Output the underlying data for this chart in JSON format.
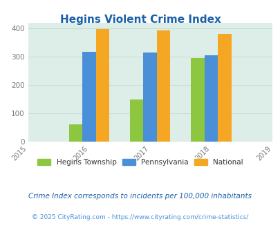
{
  "title": "Hegins Violent Crime Index",
  "years": [
    2016,
    2017,
    2018
  ],
  "x_ticks": [
    2015,
    2016,
    2017,
    2018,
    2019
  ],
  "hegins": [
    60,
    148,
    296
  ],
  "pennsylvania": [
    317,
    315,
    306
  ],
  "national": [
    398,
    394,
    382
  ],
  "colors": {
    "hegins": "#8dc63f",
    "pennsylvania": "#4a90d9",
    "national": "#f5a623"
  },
  "ylim": [
    0,
    420
  ],
  "yticks": [
    0,
    100,
    200,
    300,
    400
  ],
  "bar_width": 0.22,
  "legend_labels": [
    "Hegins Township",
    "Pennsylvania",
    "National"
  ],
  "footnote1": "Crime Index corresponds to incidents per 100,000 inhabitants",
  "footnote2": "© 2025 CityRating.com - https://www.cityrating.com/crime-statistics/",
  "bg_color": "#ddeee8",
  "title_color": "#1a5fa8",
  "footnote1_color": "#1a5fa8",
  "footnote2_color": "#4a90d9"
}
